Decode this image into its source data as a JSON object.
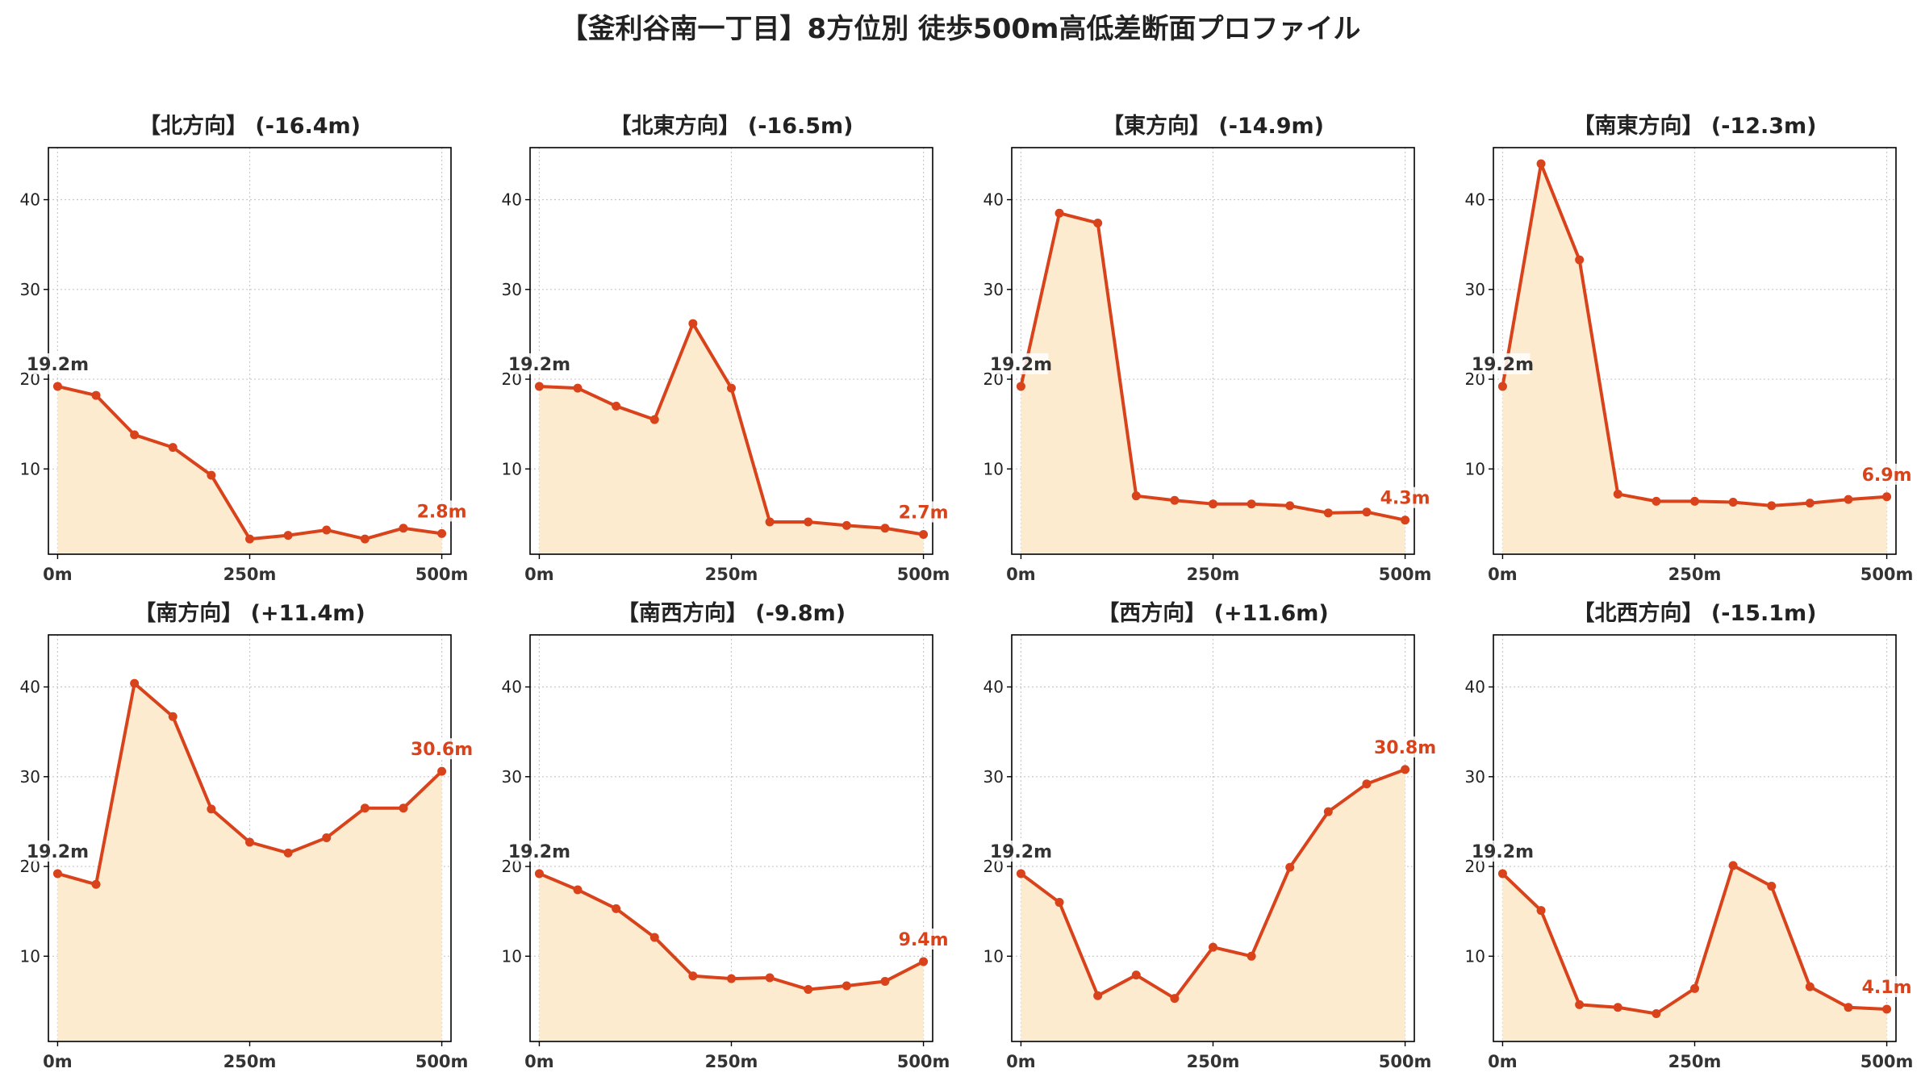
{
  "title": "【釜利谷南一丁目】8方位別 徒歩500m高低差断面プロファイル",
  "colors": {
    "line": "#d9431b",
    "fill": "#fdebd0",
    "start_label": "#333333",
    "end_label": "#d9431b",
    "grid": "#c8c8c8",
    "axis": "#000000"
  },
  "chart_data": [
    {
      "type": "area",
      "title": "【北方向】 (-16.4m)",
      "x": [
        0,
        50,
        100,
        150,
        200,
        250,
        300,
        350,
        400,
        450,
        500
      ],
      "values": [
        19.2,
        18.2,
        13.8,
        12.4,
        9.3,
        2.2,
        2.6,
        3.2,
        2.2,
        3.4,
        2.8
      ],
      "start_label": "19.2m",
      "end_label": "2.8m",
      "xticks": [
        0,
        250,
        500
      ],
      "xtick_labels": [
        "0m",
        "250m",
        "500m"
      ],
      "yticks": [
        10,
        20,
        30,
        40
      ],
      "xlim": [
        -12,
        512
      ],
      "ylim": [
        0.5,
        45.8
      ],
      "grid": true
    },
    {
      "type": "area",
      "title": "【北東方向】 (-16.5m)",
      "x": [
        0,
        50,
        100,
        150,
        200,
        250,
        300,
        350,
        400,
        450,
        500
      ],
      "values": [
        19.2,
        19.0,
        17.0,
        15.5,
        26.2,
        19.0,
        4.1,
        4.1,
        3.7,
        3.4,
        2.7
      ],
      "start_label": "19.2m",
      "end_label": "2.7m",
      "xticks": [
        0,
        250,
        500
      ],
      "xtick_labels": [
        "0m",
        "250m",
        "500m"
      ],
      "yticks": [
        10,
        20,
        30,
        40
      ],
      "xlim": [
        -12,
        512
      ],
      "ylim": [
        0.5,
        45.8
      ],
      "grid": true
    },
    {
      "type": "area",
      "title": "【東方向】 (-14.9m)",
      "x": [
        0,
        50,
        100,
        150,
        200,
        250,
        300,
        350,
        400,
        450,
        500
      ],
      "values": [
        19.2,
        38.5,
        37.4,
        7.0,
        6.5,
        6.1,
        6.1,
        5.9,
        5.1,
        5.2,
        4.3
      ],
      "start_label": "19.2m",
      "end_label": "4.3m",
      "xticks": [
        0,
        250,
        500
      ],
      "xtick_labels": [
        "0m",
        "250m",
        "500m"
      ],
      "yticks": [
        10,
        20,
        30,
        40
      ],
      "xlim": [
        -12,
        512
      ],
      "ylim": [
        0.5,
        45.8
      ],
      "grid": true
    },
    {
      "type": "area",
      "title": "【南東方向】 (-12.3m)",
      "x": [
        0,
        50,
        100,
        150,
        200,
        250,
        300,
        350,
        400,
        450,
        500
      ],
      "values": [
        19.2,
        44.0,
        33.3,
        7.2,
        6.4,
        6.4,
        6.3,
        5.9,
        6.2,
        6.6,
        6.9
      ],
      "start_label": "19.2m",
      "end_label": "6.9m",
      "xticks": [
        0,
        250,
        500
      ],
      "xtick_labels": [
        "0m",
        "250m",
        "500m"
      ],
      "yticks": [
        10,
        20,
        30,
        40
      ],
      "xlim": [
        -12,
        512
      ],
      "ylim": [
        0.5,
        45.8
      ],
      "grid": true
    },
    {
      "type": "area",
      "title": "【南方向】 (+11.4m)",
      "x": [
        0,
        50,
        100,
        150,
        200,
        250,
        300,
        350,
        400,
        450,
        500
      ],
      "values": [
        19.2,
        18.0,
        40.4,
        36.7,
        26.4,
        22.7,
        21.5,
        23.2,
        26.5,
        26.5,
        30.6
      ],
      "start_label": "19.2m",
      "end_label": "30.6m",
      "xticks": [
        0,
        250,
        500
      ],
      "xtick_labels": [
        "0m",
        "250m",
        "500m"
      ],
      "yticks": [
        10,
        20,
        30,
        40
      ],
      "xlim": [
        -12,
        512
      ],
      "ylim": [
        0.5,
        45.8
      ],
      "grid": true
    },
    {
      "type": "area",
      "title": "【南西方向】 (-9.8m)",
      "x": [
        0,
        50,
        100,
        150,
        200,
        250,
        300,
        350,
        400,
        450,
        500
      ],
      "values": [
        19.2,
        17.4,
        15.3,
        12.1,
        7.8,
        7.5,
        7.6,
        6.3,
        6.7,
        7.2,
        9.4
      ],
      "start_label": "19.2m",
      "end_label": "9.4m",
      "xticks": [
        0,
        250,
        500
      ],
      "xtick_labels": [
        "0m",
        "250m",
        "500m"
      ],
      "yticks": [
        10,
        20,
        30,
        40
      ],
      "xlim": [
        -12,
        512
      ],
      "ylim": [
        0.5,
        45.8
      ],
      "grid": true
    },
    {
      "type": "area",
      "title": "【西方向】 (+11.6m)",
      "x": [
        0,
        50,
        100,
        150,
        200,
        250,
        300,
        350,
        400,
        450,
        500
      ],
      "values": [
        19.2,
        16.0,
        5.6,
        7.9,
        5.3,
        11.0,
        10.0,
        19.9,
        26.1,
        29.2,
        30.8
      ],
      "start_label": "19.2m",
      "end_label": "30.8m",
      "xticks": [
        0,
        250,
        500
      ],
      "xtick_labels": [
        "0m",
        "250m",
        "500m"
      ],
      "yticks": [
        10,
        20,
        30,
        40
      ],
      "xlim": [
        -12,
        512
      ],
      "ylim": [
        0.5,
        45.8
      ],
      "grid": true
    },
    {
      "type": "area",
      "title": "【北西方向】 (-15.1m)",
      "x": [
        0,
        50,
        100,
        150,
        200,
        250,
        300,
        350,
        400,
        450,
        500
      ],
      "values": [
        19.2,
        15.1,
        4.6,
        4.3,
        3.6,
        6.4,
        20.1,
        17.8,
        6.6,
        4.3,
        4.1
      ],
      "start_label": "19.2m",
      "end_label": "4.1m",
      "xticks": [
        0,
        250,
        500
      ],
      "xtick_labels": [
        "0m",
        "250m",
        "500m"
      ],
      "yticks": [
        10,
        20,
        30,
        40
      ],
      "xlim": [
        -12,
        512
      ],
      "ylim": [
        0.5,
        45.8
      ],
      "grid": true
    }
  ]
}
